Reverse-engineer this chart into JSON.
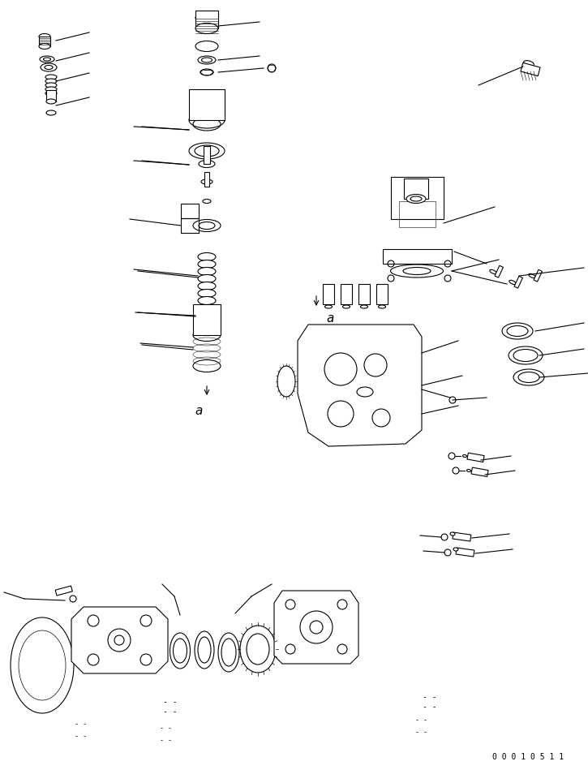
{
  "bg_color": "#ffffff",
  "line_color": "#000000",
  "fig_width": 7.25,
  "fig_height": 9.49,
  "dpi": 100,
  "serial_number": "0 0 0 1 0 5 1 1",
  "label_a1": "a",
  "label_a2": "a"
}
